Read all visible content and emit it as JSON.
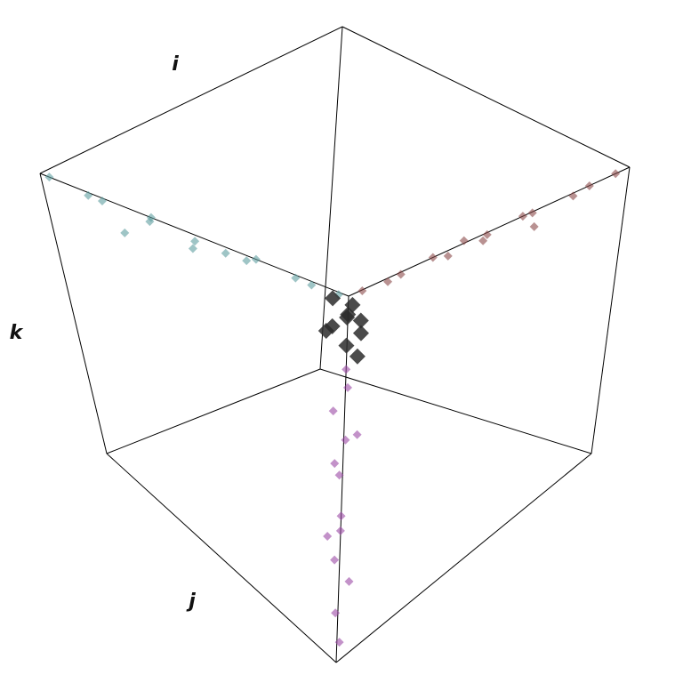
{
  "chart_data": {
    "type": "scatter3d",
    "xlabel": "i",
    "ylabel": "j",
    "zlabel": "k",
    "xlim": [
      0,
      1
    ],
    "ylim": [
      0,
      1
    ],
    "zlim": [
      0,
      1
    ],
    "series": [
      {
        "color": "#5f9ea0",
        "x": [
          1,
          0.97,
          1,
          0.95,
          1,
          0.96,
          1,
          0.93,
          1,
          0.97,
          1,
          0.98,
          0.9,
          0.99
        ],
        "y": [
          0.03,
          0.12,
          0.2,
          0.3,
          0.36,
          0.45,
          0.5,
          0.6,
          0.7,
          0.8,
          0.88,
          0.95,
          0.5,
          0.25
        ],
        "z": [
          0,
          0.04,
          0.01,
          0.06,
          0,
          0.08,
          0.02,
          0.07,
          0,
          0.03,
          0.01,
          0.02,
          0.1,
          0.1
        ]
      },
      {
        "color": "#8b4a4a",
        "x": [
          0.05,
          0.12,
          0.2,
          0.3,
          0.38,
          0.45,
          0.52,
          0.6,
          0.7,
          0.78,
          0.86,
          0.94,
          0.5,
          0.3
        ],
        "y": [
          1,
          0.98,
          1,
          0.96,
          1,
          0.95,
          1,
          0.96,
          1,
          0.97,
          1,
          0.99,
          0.92,
          0.97
        ],
        "z": [
          0,
          0.02,
          0.01,
          0.04,
          0,
          0.05,
          0.02,
          0.05,
          0,
          0.03,
          0.01,
          0.01,
          0.06,
          0.08
        ]
      },
      {
        "color": "#9b4aa5",
        "x": [
          1,
          0.97,
          1,
          0.95,
          1,
          0.96,
          1,
          0.97,
          1,
          0.96,
          1,
          0.99,
          0.93,
          0.98
        ],
        "y": [
          1,
          0.98,
          0.96,
          1,
          0.97,
          0.95,
          1,
          0.97,
          0.98,
          1,
          0.99,
          1,
          0.94,
          0.93
        ],
        "z": [
          0.2,
          0.27,
          0.33,
          0.4,
          0.47,
          0.53,
          0.6,
          0.67,
          0.73,
          0.8,
          0.87,
          0.95,
          0.45,
          0.7
        ]
      },
      {
        "color": "#2b2b2b",
        "x": [
          1,
          0.97,
          0.95,
          1,
          0.98,
          0.94,
          1,
          0.96,
          0.99,
          0.93
        ],
        "y": [
          1,
          0.97,
          1,
          0.95,
          0.98,
          0.96,
          0.93,
          1,
          0.94,
          0.98
        ],
        "z": [
          0.05,
          0.08,
          0.12,
          0.1,
          0.15,
          0.06,
          0.12,
          0.18,
          0.03,
          0.1
        ]
      }
    ]
  }
}
